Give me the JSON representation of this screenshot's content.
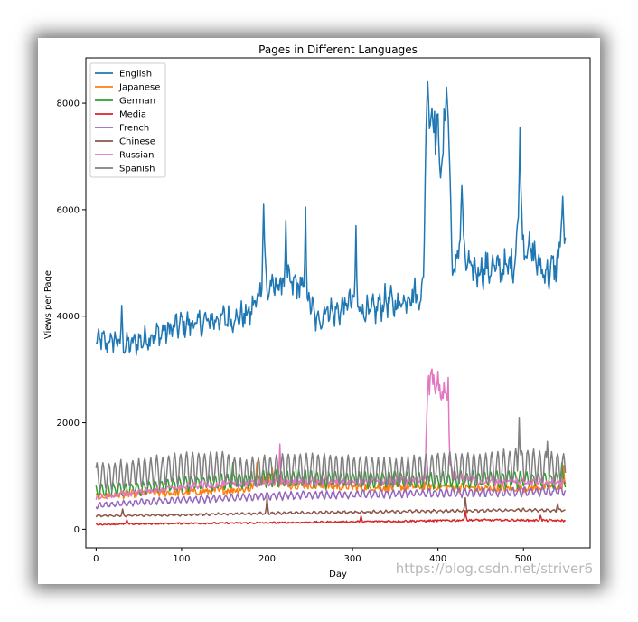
{
  "watermark": "https://blog.csdn.net/striver6",
  "chart_data": {
    "type": "line",
    "title": "Pages in Different Languages",
    "xlabel": "Day",
    "ylabel": "Views per Page",
    "xlim": [
      -12,
      578
    ],
    "ylim": [
      -350,
      8850
    ],
    "xticks": [
      0,
      100,
      200,
      300,
      400,
      500
    ],
    "yticks": [
      0,
      2000,
      4000,
      6000,
      8000
    ],
    "legend_position": "top-left",
    "x": {
      "start": 0,
      "end": 549,
      "step": 1
    },
    "series": [
      {
        "name": "English",
        "color": "#1f77b4",
        "anchors": [
          [
            0,
            3450
          ],
          [
            5,
            3600
          ],
          [
            10,
            3480
          ],
          [
            20,
            3550
          ],
          [
            30,
            3500
          ],
          [
            35,
            3450
          ],
          [
            50,
            3520
          ],
          [
            60,
            3600
          ],
          [
            80,
            3700
          ],
          [
            100,
            3850
          ],
          [
            120,
            3850
          ],
          [
            140,
            3950
          ],
          [
            160,
            3950
          ],
          [
            180,
            4050
          ],
          [
            192,
            4450
          ],
          [
            196,
            5200
          ],
          [
            200,
            4500
          ],
          [
            210,
            4550
          ],
          [
            220,
            4650
          ],
          [
            230,
            4600
          ],
          [
            240,
            4550
          ],
          [
            250,
            4300
          ],
          [
            255,
            4000
          ],
          [
            260,
            3900
          ],
          [
            270,
            4150
          ],
          [
            280,
            4050
          ],
          [
            300,
            4300
          ],
          [
            310,
            4150
          ],
          [
            320,
            4050
          ],
          [
            340,
            4300
          ],
          [
            350,
            4200
          ],
          [
            360,
            4300
          ],
          [
            370,
            4450
          ],
          [
            380,
            4300
          ],
          [
            383,
            4800
          ],
          [
            386,
            7500
          ],
          [
            390,
            7900
          ],
          [
            395,
            7700
          ],
          [
            400,
            7400
          ],
          [
            404,
            6700
          ],
          [
            408,
            7600
          ],
          [
            412,
            7900
          ],
          [
            416,
            5200
          ],
          [
            420,
            4700
          ],
          [
            425,
            5500
          ],
          [
            428,
            6000
          ],
          [
            432,
            5000
          ],
          [
            440,
            4850
          ],
          [
            460,
            4900
          ],
          [
            480,
            4900
          ],
          [
            490,
            5050
          ],
          [
            495,
            6100
          ],
          [
            500,
            5400
          ],
          [
            510,
            5200
          ],
          [
            520,
            4900
          ],
          [
            530,
            4800
          ],
          [
            540,
            5000
          ],
          [
            545,
            5700
          ],
          [
            549,
            5200
          ]
        ],
        "noise": 0.05,
        "weekly": 0.03,
        "spikes": [
          [
            30,
            4200
          ],
          [
            196,
            6100
          ],
          [
            222,
            5800
          ],
          [
            245,
            6050
          ],
          [
            304,
            5700
          ],
          [
            388,
            8400
          ],
          [
            410,
            8300
          ],
          [
            428,
            6450
          ],
          [
            496,
            7550
          ],
          [
            546,
            6250
          ]
        ]
      },
      {
        "name": "Japanese",
        "color": "#ff7f0e",
        "anchors": [
          [
            0,
            620
          ],
          [
            60,
            680
          ],
          [
            120,
            700
          ],
          [
            180,
            760
          ],
          [
            190,
            900
          ],
          [
            200,
            950
          ],
          [
            220,
            860
          ],
          [
            260,
            820
          ],
          [
            300,
            790
          ],
          [
            350,
            780
          ],
          [
            400,
            800
          ],
          [
            430,
            780
          ],
          [
            450,
            760
          ],
          [
            500,
            770
          ],
          [
            549,
            800
          ]
        ],
        "noise": 0.1,
        "weekly": 0.02,
        "spikes": [
          [
            188,
            1250
          ],
          [
            206,
            1150
          ],
          [
            547,
            1200
          ]
        ]
      },
      {
        "name": "German",
        "color": "#2ca02c",
        "anchors": [
          [
            0,
            720
          ],
          [
            60,
            780
          ],
          [
            100,
            850
          ],
          [
            150,
            900
          ],
          [
            200,
            950
          ],
          [
            250,
            950
          ],
          [
            300,
            920
          ],
          [
            350,
            940
          ],
          [
            400,
            920
          ],
          [
            450,
            950
          ],
          [
            500,
            930
          ],
          [
            549,
            920
          ]
        ],
        "noise": 0.05,
        "weekly": 0.14,
        "spikes": [
          [
            160,
            1250
          ],
          [
            545,
            1250
          ]
        ]
      },
      {
        "name": "Media",
        "color": "#d62728",
        "anchors": [
          [
            0,
            90
          ],
          [
            100,
            110
          ],
          [
            200,
            120
          ],
          [
            300,
            140
          ],
          [
            400,
            160
          ],
          [
            430,
            170
          ],
          [
            500,
            170
          ],
          [
            549,
            160
          ]
        ],
        "noise": 0.12,
        "weekly": 0.03,
        "spikes": [
          [
            36,
            180
          ],
          [
            310,
            250
          ],
          [
            432,
            350
          ],
          [
            520,
            260
          ]
        ]
      },
      {
        "name": "French",
        "color": "#9467bd",
        "anchors": [
          [
            0,
            440
          ],
          [
            60,
            520
          ],
          [
            120,
            560
          ],
          [
            200,
            620
          ],
          [
            260,
            640
          ],
          [
            300,
            650
          ],
          [
            400,
            680
          ],
          [
            500,
            700
          ],
          [
            549,
            720
          ]
        ],
        "noise": 0.04,
        "weekly": 0.1,
        "spikes": []
      },
      {
        "name": "Chinese",
        "color": "#8c564b",
        "anchors": [
          [
            0,
            250
          ],
          [
            100,
            270
          ],
          [
            200,
            300
          ],
          [
            300,
            320
          ],
          [
            400,
            340
          ],
          [
            500,
            360
          ],
          [
            549,
            350
          ]
        ],
        "noise": 0.04,
        "weekly": 0.06,
        "spikes": [
          [
            31,
            380
          ],
          [
            200,
            610
          ],
          [
            432,
            590
          ],
          [
            540,
            480
          ]
        ]
      },
      {
        "name": "Russian",
        "color": "#e377c2",
        "anchors": [
          [
            0,
            600
          ],
          [
            60,
            720
          ],
          [
            120,
            820
          ],
          [
            180,
            860
          ],
          [
            200,
            880
          ],
          [
            260,
            890
          ],
          [
            300,
            880
          ],
          [
            380,
            920
          ],
          [
            385,
            1000
          ],
          [
            388,
            2700
          ],
          [
            392,
            2850
          ],
          [
            400,
            2750
          ],
          [
            405,
            2500
          ],
          [
            410,
            2650
          ],
          [
            413,
            1300
          ],
          [
            418,
            1000
          ],
          [
            450,
            900
          ],
          [
            500,
            900
          ],
          [
            549,
            880
          ]
        ],
        "noise": 0.07,
        "weekly": 0.03,
        "spikes": [
          [
            215,
            1600
          ],
          [
            392,
            2960
          ],
          [
            412,
            2850
          ]
        ]
      },
      {
        "name": "Spanish",
        "color": "#7f7f7f",
        "anchors": [
          [
            0,
            980
          ],
          [
            50,
            1050
          ],
          [
            100,
            1150
          ],
          [
            150,
            1150
          ],
          [
            170,
            1050
          ],
          [
            200,
            1100
          ],
          [
            250,
            1150
          ],
          [
            300,
            1100
          ],
          [
            350,
            1050
          ],
          [
            400,
            1150
          ],
          [
            450,
            1150
          ],
          [
            500,
            1200
          ],
          [
            549,
            1150
          ]
        ],
        "noise": 0.03,
        "weekly": 0.25,
        "spikes": [
          [
            495,
            2100
          ],
          [
            528,
            1650
          ]
        ]
      }
    ]
  }
}
